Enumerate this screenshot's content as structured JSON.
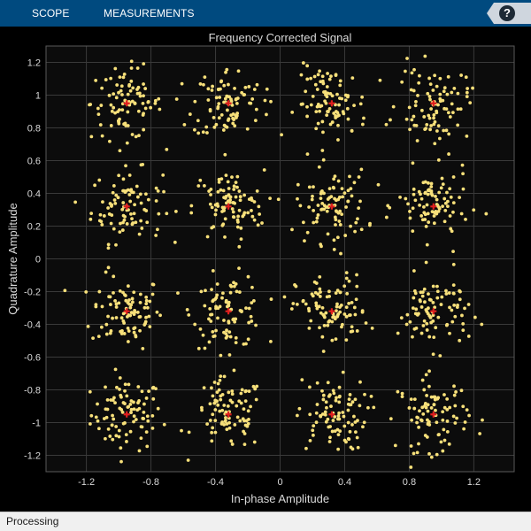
{
  "toolstrip": {
    "tabs": [
      {
        "label": "SCOPE"
      },
      {
        "label": "MEASUREMENTS"
      }
    ],
    "help_label": "?"
  },
  "status": {
    "text": "Processing"
  },
  "colors": {
    "toolstrip_bg": "#004a7f",
    "axes_bg": "#0c0c0c",
    "grid": "#3a3a3a",
    "points": "#f7e07a",
    "reference": "#e01e1e",
    "text": "#d9d9d9"
  },
  "chart_data": {
    "type": "scatter",
    "title": "Frequency Corrected Signal",
    "xlabel": "In-phase Amplitude",
    "ylabel": "Quadrature Amplitude",
    "xlim": [
      -1.45,
      1.45
    ],
    "ylim": [
      -1.3,
      1.3
    ],
    "x_ticks": [
      -1.2,
      -0.8,
      -0.4,
      0,
      0.4,
      0.8,
      1.2
    ],
    "x_tick_labels": [
      "-1.2",
      "-0.8",
      "-0.4",
      "0",
      "0.4",
      "0.8",
      "1.2"
    ],
    "y_ticks": [
      1.2,
      1,
      0.8,
      0.6,
      0.4,
      0.2,
      0,
      -0.2,
      -0.4,
      -0.6,
      -0.8,
      -1,
      -1.2
    ],
    "y_tick_labels": [
      "1.2",
      "1",
      "0.8",
      "0.6",
      "0.4",
      "0.2",
      "0",
      "-0.2",
      "-0.4",
      "-0.6",
      "-0.8",
      "-1",
      "-1.2"
    ],
    "grid": true,
    "series": [
      {
        "role": "received symbols",
        "color": "#f7e07a",
        "cluster_centers": [
          -0.95,
          -0.32,
          0.32,
          0.95
        ],
        "points_per_cluster": 90,
        "spread": 0.11
      },
      {
        "role": "reference constellation",
        "color": "#e01e1e",
        "points": [
          [
            -0.95,
            0.95
          ],
          [
            -0.32,
            0.95
          ],
          [
            0.32,
            0.95
          ],
          [
            0.95,
            0.95
          ],
          [
            -0.95,
            0.32
          ],
          [
            -0.32,
            0.32
          ],
          [
            0.32,
            0.32
          ],
          [
            0.95,
            0.32
          ],
          [
            -0.95,
            -0.32
          ],
          [
            -0.32,
            -0.32
          ],
          [
            0.32,
            -0.32
          ],
          [
            0.95,
            -0.32
          ],
          [
            -0.95,
            -0.95
          ],
          [
            -0.32,
            -0.95
          ],
          [
            0.32,
            -0.95
          ],
          [
            0.95,
            -0.95
          ]
        ]
      }
    ]
  }
}
